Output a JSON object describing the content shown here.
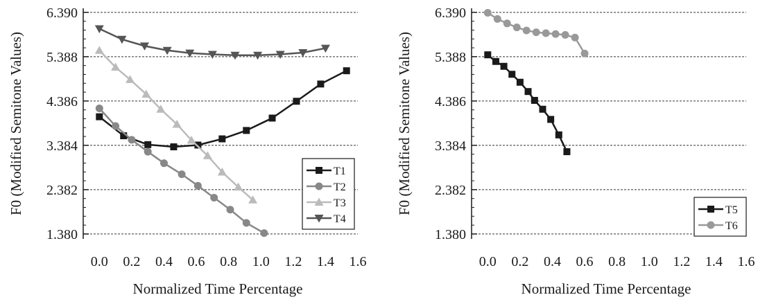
{
  "chart_data": [
    {
      "type": "line",
      "xlabel": "Normalized Time Percentage",
      "ylabel": "F0 (Modified Semitone Values)",
      "xlim": [
        -0.1,
        1.6
      ],
      "ylim": [
        1.3,
        6.45
      ],
      "xticks": [
        "0.0",
        "0.2",
        "0.4",
        "0.6",
        "0.8",
        "1.0",
        "1.2",
        "1.4",
        "1.6"
      ],
      "yticks": [
        "1.380",
        "2.382",
        "3.384",
        "4.386",
        "5.388",
        "6.390"
      ],
      "grid": "horizontal dashed",
      "legend_position": "bottom-right",
      "series": [
        {
          "name": "T1",
          "color": "#1a1a1a",
          "marker": "square",
          "x": [
            0.0,
            0.15,
            0.3,
            0.46,
            0.61,
            0.76,
            0.91,
            1.07,
            1.22,
            1.37,
            1.53
          ],
          "y": [
            4.03,
            3.6,
            3.4,
            3.35,
            3.39,
            3.53,
            3.72,
            4.0,
            4.38,
            4.77,
            5.07
          ]
        },
        {
          "name": "T2",
          "color": "#888888",
          "marker": "circle",
          "x": [
            0.0,
            0.1,
            0.2,
            0.3,
            0.4,
            0.51,
            0.61,
            0.71,
            0.81,
            0.91,
            1.02
          ],
          "y": [
            4.22,
            3.82,
            3.51,
            3.24,
            2.98,
            2.73,
            2.47,
            2.2,
            1.93,
            1.63,
            1.4
          ]
        },
        {
          "name": "T3",
          "color": "#bbbbbb",
          "marker": "triangle-up",
          "x": [
            0.0,
            0.1,
            0.19,
            0.29,
            0.38,
            0.48,
            0.57,
            0.67,
            0.76,
            0.86,
            0.95
          ],
          "y": [
            5.53,
            5.15,
            4.87,
            4.54,
            4.2,
            3.86,
            3.5,
            3.15,
            2.78,
            2.44,
            2.15
          ]
        },
        {
          "name": "T4",
          "color": "#555555",
          "marker": "triangle-down",
          "x": [
            0.0,
            0.14,
            0.28,
            0.42,
            0.56,
            0.7,
            0.84,
            0.98,
            1.12,
            1.26,
            1.4
          ],
          "y": [
            6.02,
            5.78,
            5.63,
            5.53,
            5.47,
            5.44,
            5.42,
            5.42,
            5.44,
            5.48,
            5.58
          ]
        }
      ]
    },
    {
      "type": "line",
      "xlabel": "Normalized Time Percentage",
      "ylabel": "F0 (Modified Semitone Values)",
      "xlim": [
        -0.1,
        1.6
      ],
      "ylim": [
        1.3,
        6.45
      ],
      "xticks": [
        "0.0",
        "0.2",
        "0.4",
        "0.6",
        "0.8",
        "1.0",
        "1.2",
        "1.4",
        "1.6"
      ],
      "yticks": [
        "1.380",
        "2.382",
        "3.384",
        "4.386",
        "5.388",
        "6.390"
      ],
      "grid": "horizontal dashed",
      "legend_position": "bottom-right",
      "series": [
        {
          "name": "T5",
          "color": "#1a1a1a",
          "marker": "square",
          "x": [
            0.0,
            0.05,
            0.1,
            0.15,
            0.2,
            0.25,
            0.29,
            0.34,
            0.39,
            0.44,
            0.49
          ],
          "y": [
            5.43,
            5.28,
            5.17,
            4.99,
            4.81,
            4.6,
            4.4,
            4.2,
            3.97,
            3.62,
            3.24
          ]
        },
        {
          "name": "T6",
          "color": "#999999",
          "marker": "circle",
          "x": [
            0.0,
            0.06,
            0.12,
            0.18,
            0.24,
            0.3,
            0.36,
            0.42,
            0.48,
            0.54,
            0.6
          ],
          "y": [
            6.38,
            6.24,
            6.14,
            6.05,
            5.98,
            5.94,
            5.92,
            5.9,
            5.88,
            5.82,
            5.46
          ]
        }
      ]
    }
  ]
}
